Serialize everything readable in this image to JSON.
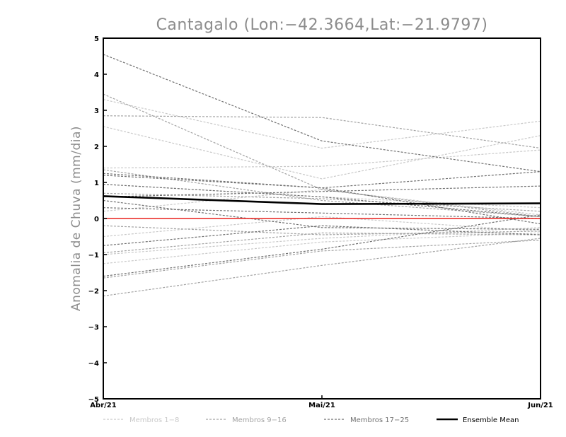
{
  "chart_data": {
    "type": "line",
    "title": "Cantagalo (Lon:-42.3664,Lat:-21.9797)",
    "xlabel": "",
    "ylabel": "Anomalia de Chuva (mm/dia)",
    "categories": [
      "Abr/21",
      "Mai/21",
      "Jun/21"
    ],
    "ylim": [
      -5,
      5
    ],
    "yticks": [
      -5,
      -4,
      -3,
      -2,
      -1,
      0,
      1,
      2,
      3,
      4,
      5
    ],
    "grid": false,
    "zero_line": {
      "value": 0,
      "color": "#e8211d"
    },
    "groups": [
      {
        "name": "Membros 1-8",
        "color": "#c9c9c9"
      },
      {
        "name": "Membros 9-16",
        "color": "#a3a3a3"
      },
      {
        "name": "Membros 17-25",
        "color": "#707070"
      }
    ],
    "series": [
      {
        "group": 0,
        "values": [
          3.3,
          1.95,
          2.7
        ]
      },
      {
        "group": 0,
        "values": [
          2.55,
          1.1,
          2.3
        ]
      },
      {
        "group": 0,
        "values": [
          1.4,
          1.45,
          1.9
        ]
      },
      {
        "group": 0,
        "values": [
          0.95,
          0.6,
          0.3
        ]
      },
      {
        "group": 0,
        "values": [
          0.2,
          0.8,
          0.1
        ]
      },
      {
        "group": 0,
        "values": [
          -0.5,
          0.05,
          -0.35
        ]
      },
      {
        "group": 0,
        "values": [
          -1.0,
          -0.55,
          -0.25
        ]
      },
      {
        "group": 0,
        "values": [
          -1.25,
          -0.65,
          -0.4
        ]
      },
      {
        "group": 1,
        "values": [
          2.85,
          2.8,
          1.95
        ]
      },
      {
        "group": 1,
        "values": [
          3.45,
          0.8,
          0.05
        ]
      },
      {
        "group": 1,
        "values": [
          1.35,
          0.5,
          0.05
        ]
      },
      {
        "group": 1,
        "values": [
          0.7,
          0.55,
          0.2
        ]
      },
      {
        "group": 1,
        "values": [
          -0.2,
          -0.45,
          -0.35
        ]
      },
      {
        "group": 1,
        "values": [
          -0.95,
          -0.4,
          -0.45
        ]
      },
      {
        "group": 1,
        "values": [
          -1.65,
          -0.9,
          -0.6
        ]
      },
      {
        "group": 1,
        "values": [
          -2.15,
          -1.3,
          -0.55
        ]
      },
      {
        "group": 2,
        "values": [
          4.55,
          2.15,
          1.3
        ]
      },
      {
        "group": 2,
        "values": [
          1.2,
          0.85,
          1.3
        ]
      },
      {
        "group": 2,
        "values": [
          1.25,
          0.85,
          -0.15
        ]
      },
      {
        "group": 2,
        "values": [
          0.95,
          0.6,
          0.05
        ]
      },
      {
        "group": 2,
        "values": [
          0.6,
          0.75,
          0.9
        ]
      },
      {
        "group": 2,
        "values": [
          0.3,
          0.15,
          0.0
        ]
      },
      {
        "group": 2,
        "values": [
          0.5,
          -0.25,
          -0.3
        ]
      },
      {
        "group": 2,
        "values": [
          -0.75,
          -0.2,
          -0.45
        ]
      },
      {
        "group": 2,
        "values": [
          -1.6,
          -0.85,
          0.1
        ]
      }
    ],
    "ensemble_mean": {
      "name": "Ensemble Mean",
      "color": "#000000",
      "values": [
        0.62,
        0.4,
        0.42
      ]
    },
    "legend_position": "bottom"
  }
}
